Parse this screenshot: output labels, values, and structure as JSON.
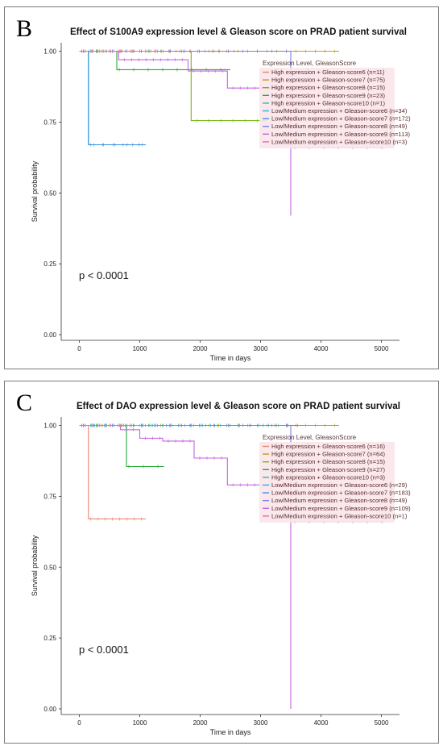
{
  "chart_data": [
    {
      "type": "line",
      "panel_label": "B",
      "title": "Effect of S100A9 expression level & Gleason score on PRAD patient survival",
      "xlabel": "Time in days",
      "ylabel": "Survival probability",
      "xlim": [
        -300,
        5300
      ],
      "ylim": [
        -0.02,
        1.03
      ],
      "xticks": [
        "0",
        "1000",
        "2000",
        "3000",
        "4000",
        "5000"
      ],
      "yticks": [
        "0.00",
        "0.25",
        "0.50",
        "0.75",
        "1.00"
      ],
      "pvalue": "p < 0.0001",
      "legend_title": "Expression Level, GleasonScore",
      "series": [
        {
          "name": "High expression + Gleason-score6 (n=11)",
          "color": "#e8836d",
          "x": [
            0,
            2600
          ],
          "y": [
            1.0,
            1.0
          ]
        },
        {
          "name": "High expression + Gleason-score7 (n=75)",
          "color": "#b8a024",
          "x": [
            0,
            4300
          ],
          "y": [
            1.0,
            1.0
          ]
        },
        {
          "name": "High expression + Gleason-score8 (n=15)",
          "color": "#78b414",
          "x": [
            0,
            1850,
            1850,
            3100
          ],
          "y": [
            1.0,
            1.0,
            0.755,
            0.755
          ]
        },
        {
          "name": "High expression + Gleason-score9 (n=23)",
          "color": "#2aa838",
          "x": [
            0,
            620,
            620,
            2500
          ],
          "y": [
            1.0,
            1.0,
            0.935,
            0.935
          ]
        },
        {
          "name": "High expression + Gleason-score10 (n=1)",
          "color": "#2fb8a0",
          "x": [
            0,
            1500
          ],
          "y": [
            1.0,
            1.0
          ]
        },
        {
          "name": "Low/Medium expression + Gleason-score6 (n=34)",
          "color": "#22b4d4",
          "x": [
            0,
            150,
            150,
            1100
          ],
          "y": [
            1.0,
            1.0,
            0.67,
            0.67
          ]
        },
        {
          "name": "Low/Medium expression + Gleason-score7 (n=172)",
          "color": "#3d8fdc",
          "x": [
            0,
            150,
            150,
            1100
          ],
          "y": [
            1.0,
            1.0,
            0.67,
            0.67
          ]
        },
        {
          "name": "Low/Medium expression + Gleason-score8 (n=49)",
          "color": "#7d7ce8",
          "x": [
            0,
            3500,
            3500,
            5050
          ],
          "y": [
            1.0,
            1.0,
            0.66,
            0.66
          ]
        },
        {
          "name": "Low/Medium expression + Gleason-score9 (n=113)",
          "color": "#c466e0",
          "x": [
            0,
            650,
            650,
            1800,
            1800,
            2450,
            2450,
            3500,
            3500
          ],
          "y": [
            1.0,
            1.0,
            0.97,
            0.97,
            0.93,
            0.93,
            0.87,
            0.87,
            0.42
          ]
        },
        {
          "name": "Low/Medium expression + Gleason-score10 (n=3)",
          "color": "#e86aa8",
          "x": [
            0,
            1300
          ],
          "y": [
            1.0,
            1.0
          ]
        }
      ]
    },
    {
      "type": "line",
      "panel_label": "C",
      "title": "Effect of DAO expression level & Gleason score on PRAD patient survival",
      "xlabel": "Time in days",
      "ylabel": "Survival probability",
      "xlim": [
        -300,
        5300
      ],
      "ylim": [
        -0.02,
        1.03
      ],
      "xticks": [
        "0",
        "1000",
        "2000",
        "3000",
        "4000",
        "5000"
      ],
      "yticks": [
        "0.00",
        "0.25",
        "0.50",
        "0.75",
        "1.00"
      ],
      "pvalue": "p < 0.0001",
      "legend_title": "Expression Level, GleasonScore",
      "series": [
        {
          "name": "High expression + Gleason-score6 (n=16)",
          "color": "#e8836d",
          "x": [
            0,
            150,
            150,
            1100
          ],
          "y": [
            1.0,
            1.0,
            0.67,
            0.67
          ]
        },
        {
          "name": "High expression + Gleason-score7 (n=64)",
          "color": "#b8a024",
          "x": [
            0,
            4300
          ],
          "y": [
            1.0,
            1.0
          ]
        },
        {
          "name": "High expression + Gleason-score8 (n=15)",
          "color": "#78b414",
          "x": [
            0,
            2600
          ],
          "y": [
            1.0,
            1.0
          ]
        },
        {
          "name": "High expression + Gleason-score9 (n=27)",
          "color": "#2aa838",
          "x": [
            0,
            780,
            780,
            1400
          ],
          "y": [
            1.0,
            1.0,
            0.855,
            0.855
          ]
        },
        {
          "name": "High expression + Gleason-score10 (n=3)",
          "color": "#2fb8a0",
          "x": [
            0,
            1500
          ],
          "y": [
            1.0,
            1.0
          ]
        },
        {
          "name": "Low/Medium expression + Gleason-score6 (n=29)",
          "color": "#22b4d4",
          "x": [
            0,
            3700
          ],
          "y": [
            1.0,
            1.0
          ]
        },
        {
          "name": "Low/Medium expression + Gleason-score7 (n=183)",
          "color": "#3d8fdc",
          "x": [
            0,
            3600
          ],
          "y": [
            1.0,
            1.0
          ]
        },
        {
          "name": "Low/Medium expression + Gleason-score8 (n=49)",
          "color": "#7d7ce8",
          "x": [
            0,
            3500,
            3500,
            5050
          ],
          "y": [
            1.0,
            1.0,
            0.66,
            0.66
          ]
        },
        {
          "name": "Low/Medium expression + Gleason-score9 (n=109)",
          "color": "#c466e0",
          "x": [
            0,
            680,
            680,
            1000,
            1000,
            1380,
            1380,
            1900,
            1900,
            2450,
            2450,
            3500,
            3500
          ],
          "y": [
            1.0,
            1.0,
            0.985,
            0.985,
            0.955,
            0.955,
            0.945,
            0.945,
            0.885,
            0.885,
            0.79,
            0.79,
            0.0
          ]
        },
        {
          "name": "Low/Medium expression + Gleason-score10 (n=1)",
          "color": "#e86aa8",
          "x": [
            0,
            1300
          ],
          "y": [
            1.0,
            1.0
          ]
        }
      ]
    }
  ]
}
